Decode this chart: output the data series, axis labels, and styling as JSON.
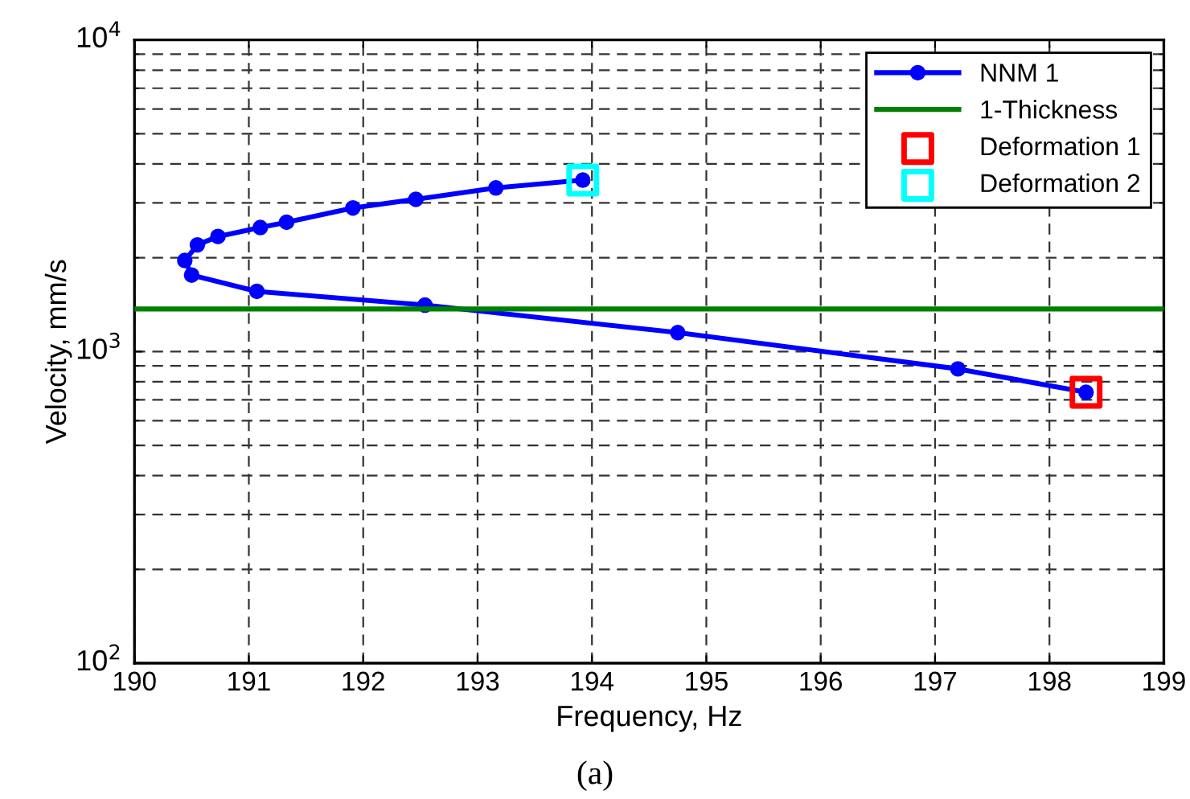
{
  "chart_data": {
    "type": "line",
    "xlabel": "Frequency, Hz",
    "ylabel": "Velocity, mm/s",
    "annotations": [
      "(a)"
    ],
    "log": "y",
    "grid": true,
    "legend": "top right",
    "xlim": [
      190,
      199
    ],
    "xticks": [
      190,
      191,
      192,
      193,
      194,
      195,
      196,
      197,
      198,
      199
    ],
    "ylim": [
      100,
      10000
    ],
    "yticks": [
      {
        "value": 100,
        "label": "10$^{2}$"
      },
      {
        "value": 1000,
        "label": "10$^{3}$"
      },
      {
        "value": 10000,
        "label": "10$^{4}$"
      }
    ],
    "series": [
      {
        "name": "NNM 1",
        "color": "#0000ff",
        "marker": "circle",
        "line_style": "solid",
        "x": [
          193.92,
          193.16,
          192.46,
          191.91,
          191.33,
          191.1,
          190.73,
          190.55,
          190.44,
          190.5,
          191.07,
          192.54,
          194.75,
          197.2,
          198.32
        ],
        "values": [
          3550,
          3350,
          3080,
          2890,
          2600,
          2500,
          2340,
          2200,
          1960,
          1760,
          1560,
          1410,
          1150,
          880,
          740
        ]
      },
      {
        "name": "1-Thickness",
        "type": "line",
        "color": "#008000",
        "marker": "none",
        "line_style": "solid",
        "x": [
          190,
          199
        ],
        "values": [
          1370,
          1370
        ]
      },
      {
        "name": "Deformation 1",
        "type": "scatter",
        "color": "#ff0000",
        "marker": "square",
        "x": [
          198.32
        ],
        "values": [
          740
        ]
      },
      {
        "name": "Deformation 2",
        "type": "scatter",
        "color": "#00ffff",
        "marker": "square",
        "x": [
          193.92
        ],
        "values": [
          3550
        ]
      }
    ]
  }
}
